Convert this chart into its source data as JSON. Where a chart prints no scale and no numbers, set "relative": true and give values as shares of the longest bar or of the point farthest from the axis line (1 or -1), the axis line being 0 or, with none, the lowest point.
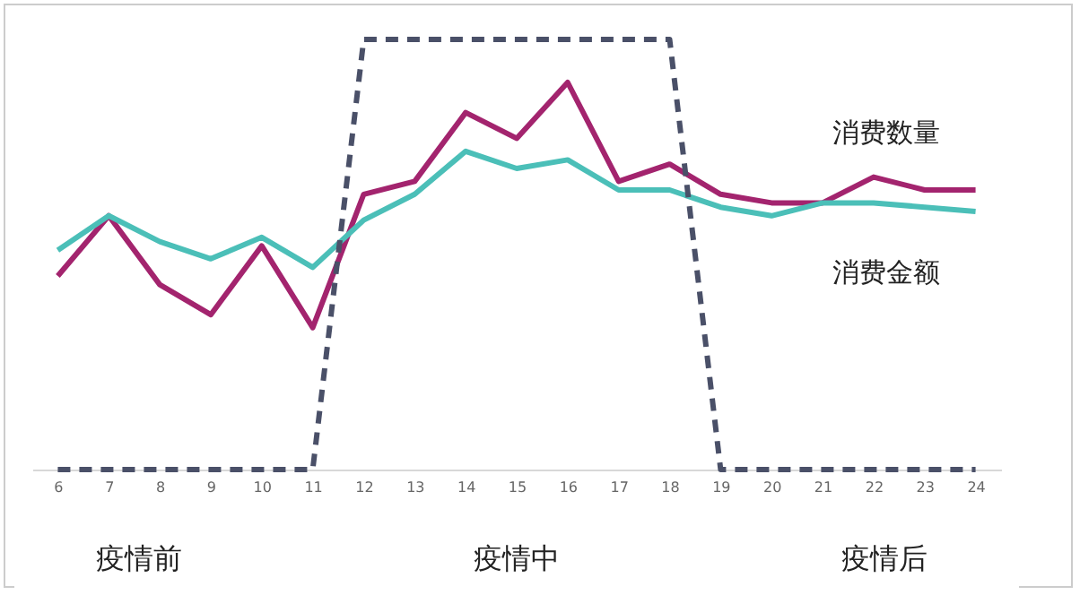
{
  "chart_data": {
    "type": "line",
    "relative": true,
    "line_style": "solid",
    "marker": "none",
    "categories": [
      "6",
      "7",
      "8",
      "9",
      "10",
      "11",
      "12",
      "13",
      "14",
      "15",
      "16",
      "17",
      "18",
      "19",
      "20",
      "21",
      "22",
      "23",
      "24"
    ],
    "series": [
      {
        "name": "消费数量",
        "color": "#a3246e",
        "values": [
          0.45,
          0.59,
          0.43,
          0.36,
          0.52,
          0.33,
          0.64,
          0.67,
          0.83,
          0.77,
          0.9,
          0.67,
          0.71,
          0.64,
          0.62,
          0.62,
          0.68,
          0.65,
          0.65
        ]
      },
      {
        "name": "消费金额",
        "color": "#4bbfb8",
        "values": [
          0.51,
          0.59,
          0.53,
          0.49,
          0.54,
          0.47,
          0.58,
          0.64,
          0.74,
          0.7,
          0.72,
          0.65,
          0.65,
          0.61,
          0.59,
          0.62,
          0.62,
          0.61,
          0.6
        ]
      },
      {
        "color": "#4a5068",
        "line_style": "dashed",
        "values": [
          0,
          0,
          0,
          0,
          0,
          0,
          1,
          1,
          1,
          1,
          1,
          1,
          1,
          0,
          0,
          0,
          0,
          0,
          0
        ]
      }
    ],
    "annotations": [
      "疫情前",
      "疫情中",
      "疫情后"
    ]
  }
}
